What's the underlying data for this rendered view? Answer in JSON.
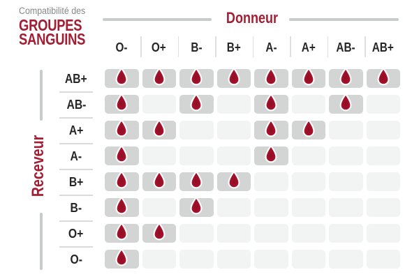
{
  "title": {
    "eyebrow": "Compatibilité des",
    "line1": "GROUPES",
    "line2": "SANGUINS"
  },
  "axes": {
    "donor_label": "Donneur",
    "receiver_label": "Receveur"
  },
  "icons": {
    "compatible_marker": "blood-drop-icon"
  },
  "colors": {
    "accent_red": "#a41e33",
    "drop_red_outer": "#b3132f",
    "drop_red_inner": "#8e0e25",
    "cell_filled": "#d3d5d5",
    "cell_empty": "#f2f3f3",
    "muted_gray_text": "#85888a",
    "line_gray": "#c8cbcb",
    "label_dark": "#262626"
  },
  "chart_data": {
    "type": "heatmap",
    "title": "Compatibilité des GROUPES SANGUINS",
    "xlabel": "Donneur",
    "ylabel": "Receveur",
    "columns": [
      "O-",
      "O+",
      "B-",
      "B+",
      "A-",
      "A+",
      "AB-",
      "AB+"
    ],
    "rows": [
      "AB+",
      "AB-",
      "A+",
      "A-",
      "B+",
      "B-",
      "O+",
      "O-"
    ],
    "cell_values": "1 = compatible (blood drop shown), 0 = not compatible (empty cell)",
    "matrix": [
      [
        1,
        1,
        1,
        1,
        1,
        1,
        1,
        1
      ],
      [
        1,
        0,
        1,
        0,
        1,
        0,
        1,
        0
      ],
      [
        1,
        1,
        0,
        0,
        1,
        1,
        0,
        0
      ],
      [
        1,
        0,
        0,
        0,
        1,
        0,
        0,
        0
      ],
      [
        1,
        1,
        1,
        1,
        0,
        0,
        0,
        0
      ],
      [
        1,
        0,
        1,
        0,
        0,
        0,
        0,
        0
      ],
      [
        1,
        1,
        0,
        0,
        0,
        0,
        0,
        0
      ],
      [
        1,
        0,
        0,
        0,
        0,
        0,
        0,
        0
      ]
    ],
    "legend_position": "none",
    "grid": false
  }
}
